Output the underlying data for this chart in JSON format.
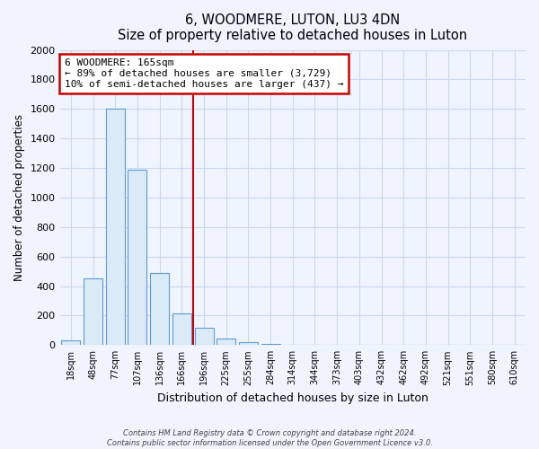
{
  "title": "6, WOODMERE, LUTON, LU3 4DN",
  "subtitle": "Size of property relative to detached houses in Luton",
  "xlabel": "Distribution of detached houses by size in Luton",
  "ylabel": "Number of detached properties",
  "bar_labels": [
    "18sqm",
    "48sqm",
    "77sqm",
    "107sqm",
    "136sqm",
    "166sqm",
    "196sqm",
    "225sqm",
    "255sqm",
    "284sqm",
    "314sqm",
    "344sqm",
    "373sqm",
    "403sqm",
    "432sqm",
    "462sqm",
    "492sqm",
    "521sqm",
    "551sqm",
    "580sqm",
    "610sqm"
  ],
  "bar_values": [
    35,
    455,
    1600,
    1190,
    490,
    215,
    120,
    45,
    20,
    5,
    0,
    0,
    0,
    0,
    0,
    0,
    0,
    0,
    0,
    0,
    0
  ],
  "bar_color": "#daeaf7",
  "bar_edge_color": "#5b9bd5",
  "vline_x": 5.5,
  "vline_color": "#cc0000",
  "annotation_line1": "6 WOODMERE: 165sqm",
  "annotation_line2": "← 89% of detached houses are smaller (3,729)",
  "annotation_line3": "10% of semi-detached houses are larger (437) →",
  "annotation_box_color": "#ffffff",
  "annotation_box_edge_color": "#cc0000",
  "ylim": [
    0,
    2000
  ],
  "yticks": [
    0,
    200,
    400,
    600,
    800,
    1000,
    1200,
    1400,
    1600,
    1800,
    2000
  ],
  "footer_line1": "Contains HM Land Registry data © Crown copyright and database right 2024.",
  "footer_line2": "Contains public sector information licensed under the Open Government Licence v3.0.",
  "background_color": "#f0f4ff",
  "grid_color": "#c8d8ee"
}
